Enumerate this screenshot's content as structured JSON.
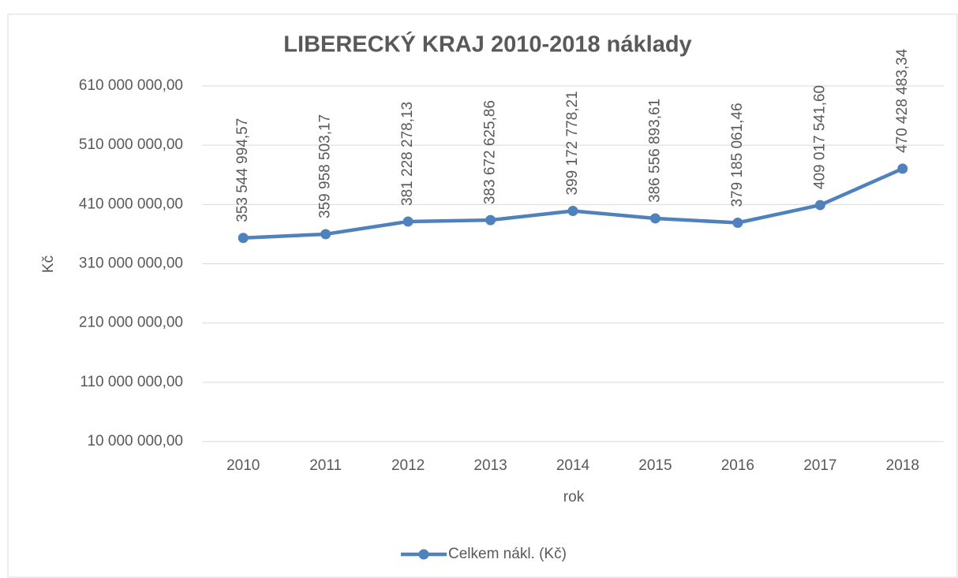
{
  "chart_data": {
    "type": "line",
    "title": "LIBERECKÝ KRAJ 2010-2018 náklady",
    "x_label": "rok",
    "y_label": "Kč",
    "categories": [
      "2010",
      "2011",
      "2012",
      "2013",
      "2014",
      "2015",
      "2016",
      "2017",
      "2018"
    ],
    "series": [
      {
        "name": "Celkem nákl. (Kč)",
        "color": "#4f81bd",
        "values": [
          353544994.57,
          359958503.17,
          381228278.13,
          383672625.86,
          399172778.21,
          386556893.61,
          379185061.46,
          409017541.6,
          470428483.34
        ],
        "value_labels": [
          "353 544 994,57",
          "359 958 503,17",
          "381 228 278,13",
          "383 672 625,86",
          "399 172 778,21",
          "386 556 893,61",
          "379 185 061,46",
          "409 017 541,60",
          "470 428 483,34"
        ]
      }
    ],
    "ylim": [
      10000000,
      610000000
    ],
    "yticks": [
      {
        "value": 10000000,
        "label": "10 000 000,00"
      },
      {
        "value": 110000000,
        "label": "110 000 000,00"
      },
      {
        "value": 210000000,
        "label": "210 000 000,00"
      },
      {
        "value": 310000000,
        "label": "310 000 000,00"
      },
      {
        "value": 410000000,
        "label": "410 000 000,00"
      },
      {
        "value": 510000000,
        "label": "510 000 000,00"
      },
      {
        "value": 610000000,
        "label": "610 000 000,00"
      }
    ],
    "grid": true,
    "legend": "bottom"
  }
}
